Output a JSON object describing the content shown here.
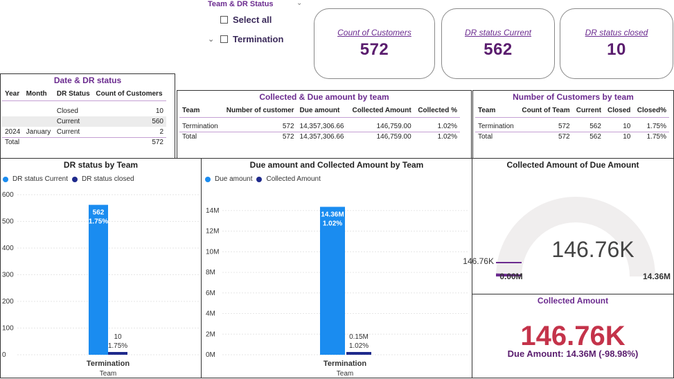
{
  "slicer": {
    "title": "Team & DR Status",
    "options": [
      "Select all",
      "Termination"
    ]
  },
  "cards": [
    {
      "label": "Count of Customers",
      "value": "572"
    },
    {
      "label": "DR status Current",
      "value": "562"
    },
    {
      "label": "DR status closed",
      "value": "10"
    }
  ],
  "date_table": {
    "title": "Date & DR status",
    "headers": [
      "Year",
      "Month",
      "DR Status",
      "Count of Customers"
    ],
    "rows": [
      [
        "",
        "",
        "Closed",
        "10"
      ],
      [
        "",
        "",
        "Current",
        "560"
      ],
      [
        "2024",
        "January",
        "Current",
        "2"
      ]
    ],
    "total": [
      "Total",
      "",
      "",
      "572"
    ]
  },
  "collected_table": {
    "title": "Collected & Due amount by team",
    "headers": [
      "Team",
      "Number of customer",
      "Due amount",
      "Collected Amount",
      "Collected %"
    ],
    "rows": [
      [
        "Termination",
        "572",
        "14,357,306.66",
        "146,759.00",
        "1.02%"
      ]
    ],
    "total": [
      "Total",
      "572",
      "14,357,306.66",
      "146,759.00",
      "1.02%"
    ]
  },
  "customers_table": {
    "title": "Number of Customers by team",
    "headers": [
      "Team",
      "Count of Team",
      "Current",
      "Closed",
      "Closed%"
    ],
    "rows": [
      [
        "Termination",
        "572",
        "562",
        "10",
        "1.75%"
      ]
    ],
    "total": [
      "Total",
      "572",
      "562",
      "10",
      "1.75%"
    ]
  },
  "chart_data": [
    {
      "type": "bar",
      "title": "DR status by Team",
      "xlabel": "Team",
      "categories": [
        "Termination"
      ],
      "series": [
        {
          "name": "DR status Current",
          "values": [
            562
          ],
          "labels": [
            "562",
            "1.75%"
          ],
          "color": "#1a8cf0"
        },
        {
          "name": "DR status closed",
          "values": [
            10
          ],
          "labels": [
            "10",
            "1.75%"
          ],
          "color": "#1f2a8c"
        }
      ],
      "ylim": [
        0,
        600
      ],
      "yticks": [
        "0",
        "100",
        "200",
        "300",
        "400",
        "500",
        "600"
      ],
      "ytick_values": [
        0,
        100,
        200,
        300,
        400,
        500,
        600
      ]
    },
    {
      "type": "bar",
      "title": "Due amount and Collected Amount by Team",
      "xlabel": "Team",
      "categories": [
        "Termination"
      ],
      "series": [
        {
          "name": "Due amount",
          "values": [
            14.36
          ],
          "labels": [
            "14.36M",
            "1.02%"
          ],
          "color": "#1a8cf0"
        },
        {
          "name": "Collected Amount",
          "values": [
            0.15
          ],
          "labels": [
            "0.15M",
            "1.02%"
          ],
          "color": "#1f2a8c"
        }
      ],
      "ylim": [
        0,
        15
      ],
      "yticks": [
        "0M",
        "2M",
        "4M",
        "6M",
        "8M",
        "10M",
        "12M",
        "14M"
      ],
      "ytick_values": [
        0,
        2,
        4,
        6,
        8,
        10,
        12,
        14
      ]
    }
  ],
  "gauge": {
    "title": "Collected Amount of Due Amount",
    "value_label": "146.76K",
    "marker_label": "146.76K",
    "min_label": "0.00M",
    "max_label": "14.36M",
    "value": 0.14676,
    "max": 14.36
  },
  "kpi": {
    "title": "Collected Amount",
    "value": "146.76K",
    "subtitle": "Due Amount: 14.36M (-98.98%)"
  },
  "colors": {
    "primary": "#1a8cf0",
    "secondary": "#1f2a8c",
    "accent": "#6b2b8f",
    "kpi_red": "#c4334a"
  }
}
